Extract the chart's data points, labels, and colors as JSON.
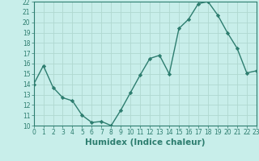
{
  "x": [
    0,
    1,
    2,
    3,
    4,
    5,
    6,
    7,
    8,
    9,
    10,
    11,
    12,
    13,
    14,
    15,
    16,
    17,
    18,
    19,
    20,
    21,
    22,
    23
  ],
  "y": [
    14,
    15.8,
    13.7,
    12.7,
    12.4,
    11.0,
    10.3,
    10.4,
    10.0,
    11.5,
    13.2,
    14.9,
    16.5,
    16.8,
    15.0,
    19.4,
    20.3,
    21.8,
    22.0,
    20.7,
    19.0,
    17.5,
    15.1,
    15.3
  ],
  "line_color": "#2d7d6f",
  "marker": "D",
  "marker_size": 2.2,
  "bg_color": "#c8eeea",
  "grid_color": "#b0d8d0",
  "xlabel": "Humidex (Indice chaleur)",
  "ylim": [
    10,
    22
  ],
  "xlim": [
    0,
    23
  ],
  "yticks": [
    10,
    11,
    12,
    13,
    14,
    15,
    16,
    17,
    18,
    19,
    20,
    21,
    22
  ],
  "xticks": [
    0,
    1,
    2,
    3,
    4,
    5,
    6,
    7,
    8,
    9,
    10,
    11,
    12,
    13,
    14,
    15,
    16,
    17,
    18,
    19,
    20,
    21,
    22,
    23
  ],
  "tick_fontsize": 5.5,
  "xlabel_fontsize": 7.5,
  "line_width": 1.0
}
